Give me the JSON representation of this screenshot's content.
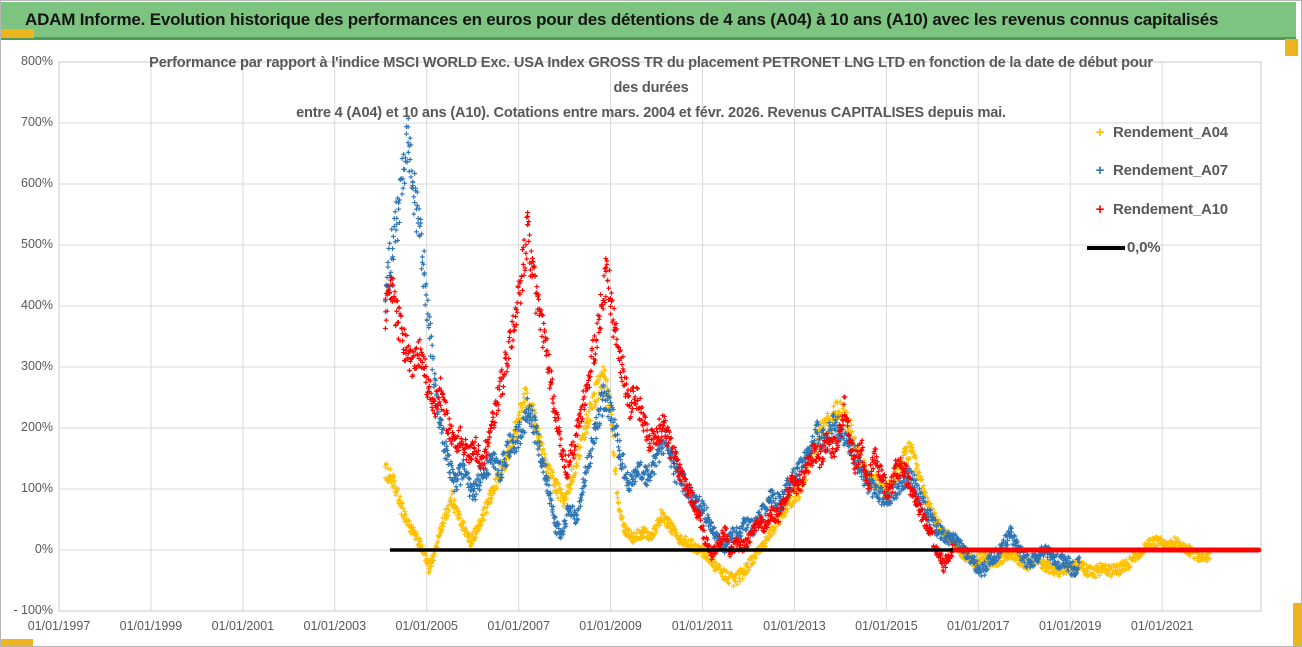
{
  "header": {
    "title": "ADAM Informe. Evolution historique des performances en euros pour des détentions de 4 ans (A04) à 10 ans (A10) avec les revenus connus capitalisés",
    "bg_color": "#7cc47f",
    "border_color": "#4f9d55"
  },
  "corner_mark_color": "#edb41f",
  "chart_data": {
    "type": "scatter",
    "title_lines": [
      "Performance par rapport à l'indice MSCI WORLD Exc. USA Index GROSS TR  du placement PETRONET LNG LTD en fonction de la date de début pour",
      "des durées",
      "entre 4 (A04) et 10 ans (A10). Cotations entre mars. 2004 et févr. 2026. Revenus CAPITALISES depuis mai."
    ],
    "x_range": [
      1997,
      2023.15
    ],
    "y_range": [
      -100,
      800
    ],
    "grid": true,
    "legend_position": "right",
    "y_ticks": [
      {
        "label": "800%",
        "value": 800
      },
      {
        "label": "700%",
        "value": 700
      },
      {
        "label": "600%",
        "value": 600
      },
      {
        "label": "500%",
        "value": 500
      },
      {
        "label": "400%",
        "value": 400
      },
      {
        "label": "300%",
        "value": 300
      },
      {
        "label": "200%",
        "value": 200
      },
      {
        "label": "100%",
        "value": 100
      },
      {
        "label": "0%",
        "value": 0
      },
      {
        "label": "- 100%",
        "value": -100
      }
    ],
    "x_ticks": [
      {
        "label": "01/01/1997",
        "year": 1997
      },
      {
        "label": "01/01/1999",
        "year": 1999
      },
      {
        "label": "01/01/2001",
        "year": 2001
      },
      {
        "label": "01/01/2003",
        "year": 2003
      },
      {
        "label": "01/01/2005",
        "year": 2005
      },
      {
        "label": "01/01/2007",
        "year": 2007
      },
      {
        "label": "01/01/2009",
        "year": 2009
      },
      {
        "label": "01/01/2011",
        "year": 2011
      },
      {
        "label": "01/01/2013",
        "year": 2013
      },
      {
        "label": "01/01/2015",
        "year": 2015
      },
      {
        "label": "01/01/2017",
        "year": 2017
      },
      {
        "label": "01/01/2019",
        "year": 2019
      },
      {
        "label": "01/01/2021",
        "year": 2021
      }
    ],
    "zero_line": {
      "label": "0,0%",
      "color": "#000000",
      "from": 2004.2,
      "to": 2023.1,
      "value": 0
    },
    "series": [
      {
        "name": "Rendement_A04",
        "color": "#FFC000",
        "marker": "plus",
        "jitter": 12,
        "points": [
          [
            2004.1,
            130
          ],
          [
            2004.25,
            115
          ],
          [
            2004.45,
            70
          ],
          [
            2004.65,
            35
          ],
          [
            2004.85,
            10
          ],
          [
            2005.05,
            -30
          ],
          [
            2005.15,
            -10
          ],
          [
            2005.35,
            45
          ],
          [
            2005.55,
            85
          ],
          [
            2005.75,
            45
          ],
          [
            2005.95,
            15
          ],
          [
            2006.15,
            40
          ],
          [
            2006.4,
            90
          ],
          [
            2006.6,
            125
          ],
          [
            2006.8,
            165
          ],
          [
            2007.0,
            215
          ],
          [
            2007.15,
            250
          ],
          [
            2007.35,
            215
          ],
          [
            2007.55,
            150
          ],
          [
            2007.8,
            105
          ],
          [
            2008.0,
            80
          ],
          [
            2008.2,
            130
          ],
          [
            2008.45,
            200
          ],
          [
            2008.65,
            255
          ],
          [
            2008.85,
            285
          ],
          [
            2009.0,
            230
          ],
          [
            2009.15,
            90
          ],
          [
            2009.3,
            35
          ],
          [
            2009.5,
            20
          ],
          [
            2009.7,
            30
          ],
          [
            2009.9,
            25
          ],
          [
            2010.1,
            55
          ],
          [
            2010.3,
            40
          ],
          [
            2010.5,
            20
          ],
          [
            2010.7,
            10
          ],
          [
            2010.9,
            3
          ],
          [
            2011.1,
            -8
          ],
          [
            2011.3,
            -28
          ],
          [
            2011.5,
            -42
          ],
          [
            2011.7,
            -50
          ],
          [
            2011.9,
            -35
          ],
          [
            2012.1,
            -15
          ],
          [
            2012.3,
            5
          ],
          [
            2012.5,
            30
          ],
          [
            2012.7,
            55
          ],
          [
            2012.9,
            80
          ],
          [
            2013.1,
            95
          ],
          [
            2013.3,
            140
          ],
          [
            2013.5,
            185
          ],
          [
            2013.7,
            205
          ],
          [
            2013.9,
            225
          ],
          [
            2014.05,
            235
          ],
          [
            2014.2,
            200
          ],
          [
            2014.4,
            150
          ],
          [
            2014.6,
            120
          ],
          [
            2014.8,
            110
          ],
          [
            2015.0,
            95
          ],
          [
            2015.2,
            120
          ],
          [
            2015.4,
            155
          ],
          [
            2015.55,
            165
          ],
          [
            2015.7,
            120
          ],
          [
            2015.9,
            75
          ],
          [
            2016.1,
            45
          ],
          [
            2016.3,
            25
          ],
          [
            2016.5,
            10
          ],
          [
            2016.7,
            -10
          ],
          [
            2016.9,
            -18
          ],
          [
            2017.1,
            -12
          ],
          [
            2017.3,
            -20
          ],
          [
            2017.5,
            -15
          ],
          [
            2017.7,
            -5
          ],
          [
            2017.9,
            -18
          ],
          [
            2018.1,
            -25
          ],
          [
            2018.3,
            -18
          ],
          [
            2018.5,
            -28
          ],
          [
            2018.7,
            -35
          ],
          [
            2018.9,
            -30
          ],
          [
            2019.1,
            -25
          ],
          [
            2019.3,
            -30
          ],
          [
            2019.5,
            -38
          ],
          [
            2019.7,
            -30
          ],
          [
            2019.9,
            -35
          ],
          [
            2020.1,
            -30
          ],
          [
            2020.3,
            -20
          ],
          [
            2020.5,
            -5
          ],
          [
            2020.7,
            8
          ],
          [
            2020.9,
            14
          ],
          [
            2021.1,
            6
          ],
          [
            2021.3,
            13
          ],
          [
            2021.5,
            3
          ],
          [
            2021.7,
            -6
          ],
          [
            2021.9,
            -15
          ],
          [
            2022.05,
            -8
          ]
        ]
      },
      {
        "name": "Rendement_A07",
        "color": "#2E75B6",
        "marker": "plus",
        "jitter": 15,
        "points": [
          [
            2004.1,
            420
          ],
          [
            2004.2,
            470
          ],
          [
            2004.35,
            540
          ],
          [
            2004.5,
            620
          ],
          [
            2004.6,
            665
          ],
          [
            2004.7,
            600
          ],
          [
            2004.85,
            520
          ],
          [
            2004.95,
            450
          ],
          [
            2005.1,
            330
          ],
          [
            2005.25,
            220
          ],
          [
            2005.45,
            150
          ],
          [
            2005.6,
            110
          ],
          [
            2005.8,
            130
          ],
          [
            2006.0,
            90
          ],
          [
            2006.2,
            120
          ],
          [
            2006.4,
            150
          ],
          [
            2006.6,
            130
          ],
          [
            2006.8,
            170
          ],
          [
            2007.0,
            185
          ],
          [
            2007.2,
            230
          ],
          [
            2007.4,
            185
          ],
          [
            2007.6,
            120
          ],
          [
            2007.8,
            40
          ],
          [
            2007.95,
            25
          ],
          [
            2008.1,
            75
          ],
          [
            2008.25,
            45
          ],
          [
            2008.45,
            120
          ],
          [
            2008.65,
            190
          ],
          [
            2008.85,
            250
          ],
          [
            2009.0,
            235
          ],
          [
            2009.2,
            160
          ],
          [
            2009.4,
            110
          ],
          [
            2009.6,
            130
          ],
          [
            2009.8,
            120
          ],
          [
            2010.0,
            150
          ],
          [
            2010.2,
            180
          ],
          [
            2010.4,
            130
          ],
          [
            2010.6,
            110
          ],
          [
            2010.8,
            80
          ],
          [
            2011.0,
            70
          ],
          [
            2011.2,
            40
          ],
          [
            2011.35,
            15
          ],
          [
            2011.5,
            5
          ],
          [
            2011.65,
            25
          ],
          [
            2011.8,
            30
          ],
          [
            2011.95,
            45
          ],
          [
            2012.1,
            35
          ],
          [
            2012.3,
            60
          ],
          [
            2012.5,
            90
          ],
          [
            2012.7,
            75
          ],
          [
            2012.9,
            110
          ],
          [
            2013.1,
            130
          ],
          [
            2013.3,
            155
          ],
          [
            2013.5,
            190
          ],
          [
            2013.7,
            175
          ],
          [
            2013.85,
            210
          ],
          [
            2014.0,
            195
          ],
          [
            2014.2,
            170
          ],
          [
            2014.4,
            140
          ],
          [
            2014.6,
            110
          ],
          [
            2014.8,
            95
          ],
          [
            2015.0,
            80
          ],
          [
            2015.2,
            100
          ],
          [
            2015.4,
            115
          ],
          [
            2015.55,
            120
          ],
          [
            2015.7,
            90
          ],
          [
            2015.9,
            60
          ],
          [
            2016.1,
            35
          ],
          [
            2016.3,
            20
          ],
          [
            2016.5,
            15
          ],
          [
            2016.65,
            5
          ],
          [
            2016.8,
            -10
          ],
          [
            2016.95,
            -25
          ],
          [
            2017.1,
            -35
          ],
          [
            2017.25,
            -15
          ],
          [
            2017.45,
            -5
          ],
          [
            2017.6,
            15
          ],
          [
            2017.7,
            27
          ],
          [
            2017.85,
            5
          ],
          [
            2018.0,
            -15
          ],
          [
            2018.15,
            -20
          ],
          [
            2018.3,
            -10
          ],
          [
            2018.45,
            3
          ],
          [
            2018.6,
            -12
          ],
          [
            2018.75,
            -20
          ],
          [
            2018.9,
            -15
          ],
          [
            2019.0,
            -28
          ],
          [
            2019.1,
            -33
          ],
          [
            2019.2,
            -20
          ]
        ]
      },
      {
        "name": "Rendement_A10",
        "color": "#FF0000",
        "marker": "plus",
        "jitter": 14,
        "points": [
          [
            2004.1,
            390
          ],
          [
            2004.25,
            420
          ],
          [
            2004.4,
            370
          ],
          [
            2004.55,
            330
          ],
          [
            2004.7,
            300
          ],
          [
            2004.85,
            320
          ],
          [
            2005.0,
            280
          ],
          [
            2005.15,
            230
          ],
          [
            2005.3,
            260
          ],
          [
            2005.45,
            210
          ],
          [
            2005.6,
            170
          ],
          [
            2005.75,
            190
          ],
          [
            2005.9,
            150
          ],
          [
            2006.05,
            170
          ],
          [
            2006.2,
            140
          ],
          [
            2006.35,
            180
          ],
          [
            2006.5,
            230
          ],
          [
            2006.65,
            280
          ],
          [
            2006.8,
            330
          ],
          [
            2006.95,
            380
          ],
          [
            2007.1,
            470
          ],
          [
            2007.2,
            525
          ],
          [
            2007.3,
            450
          ],
          [
            2007.45,
            390
          ],
          [
            2007.6,
            330
          ],
          [
            2007.75,
            250
          ],
          [
            2007.9,
            180
          ],
          [
            2008.05,
            130
          ],
          [
            2008.2,
            170
          ],
          [
            2008.35,
            220
          ],
          [
            2008.5,
            280
          ],
          [
            2008.65,
            330
          ],
          [
            2008.8,
            400
          ],
          [
            2008.9,
            450
          ],
          [
            2009.0,
            420
          ],
          [
            2009.1,
            350
          ],
          [
            2009.25,
            300
          ],
          [
            2009.4,
            235
          ],
          [
            2009.55,
            260
          ],
          [
            2009.7,
            210
          ],
          [
            2009.85,
            180
          ],
          [
            2010.0,
            190
          ],
          [
            2010.15,
            205
          ],
          [
            2010.3,
            170
          ],
          [
            2010.45,
            140
          ],
          [
            2010.6,
            110
          ],
          [
            2010.75,
            90
          ],
          [
            2010.9,
            60
          ],
          [
            2011.05,
            20
          ],
          [
            2011.2,
            -10
          ],
          [
            2011.35,
            10
          ],
          [
            2011.5,
            35
          ],
          [
            2011.6,
            -5
          ],
          [
            2011.75,
            10
          ],
          [
            2011.9,
            5
          ],
          [
            2012.05,
            25
          ],
          [
            2012.2,
            50
          ],
          [
            2012.35,
            40
          ],
          [
            2012.5,
            60
          ],
          [
            2012.65,
            55
          ],
          [
            2012.8,
            85
          ],
          [
            2012.95,
            110
          ],
          [
            2013.1,
            105
          ],
          [
            2013.25,
            135
          ],
          [
            2013.4,
            160
          ],
          [
            2013.55,
            150
          ],
          [
            2013.7,
            175
          ],
          [
            2013.85,
            165
          ],
          [
            2014.0,
            195
          ],
          [
            2014.1,
            240
          ],
          [
            2014.2,
            185
          ],
          [
            2014.3,
            140
          ],
          [
            2014.45,
            170
          ],
          [
            2014.6,
            105
          ],
          [
            2014.75,
            155
          ],
          [
            2014.9,
            120
          ],
          [
            2015.05,
            90
          ],
          [
            2015.2,
            130
          ],
          [
            2015.35,
            140
          ],
          [
            2015.5,
            110
          ],
          [
            2015.65,
            80
          ],
          [
            2015.8,
            50
          ],
          [
            2015.95,
            30
          ],
          [
            2016.1,
            0
          ],
          [
            2016.25,
            -25
          ],
          [
            2016.35,
            -10
          ],
          [
            2016.45,
            0
          ]
        ],
        "flat_segment": {
          "from": 2016.5,
          "to": 2023.1,
          "value": 0
        }
      }
    ]
  }
}
